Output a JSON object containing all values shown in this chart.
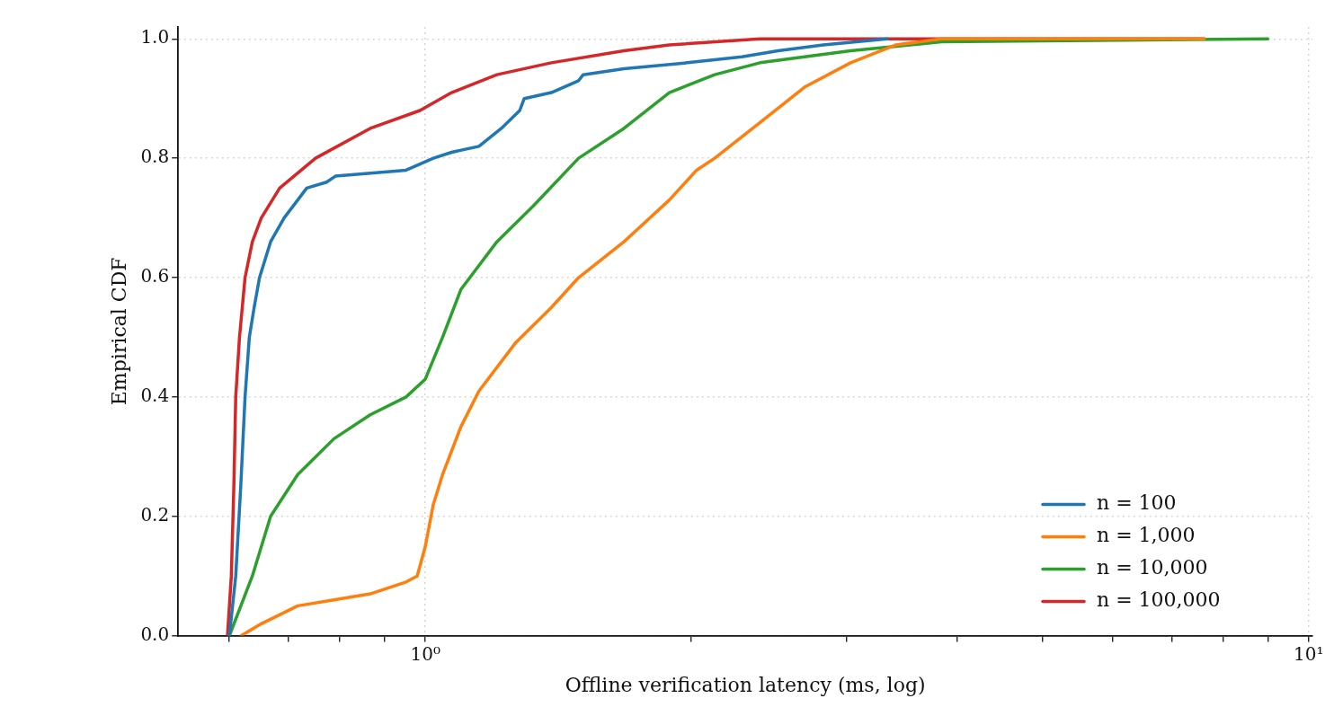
{
  "chart_data": {
    "type": "line",
    "xlabel": "Offline verification latency (ms, log)",
    "ylabel": "Empirical CDF",
    "log": "x",
    "grid": true,
    "legend": "bottom right",
    "marker": "none",
    "line_style": "solid",
    "xlim": [
      0.525,
      10.1
    ],
    "xticks": [
      {
        "value": 0.6,
        "label": null
      },
      {
        "value": 0.7,
        "label": null
      },
      {
        "value": 0.8,
        "label": null
      },
      {
        "value": 0.9,
        "label": null
      },
      {
        "value": 1,
        "label": "10⁰"
      },
      {
        "value": 2,
        "label": null
      },
      {
        "value": 3,
        "label": null
      },
      {
        "value": 4,
        "label": null
      },
      {
        "value": 5,
        "label": null
      },
      {
        "value": 6,
        "label": null
      },
      {
        "value": 7,
        "label": null
      },
      {
        "value": 8,
        "label": null
      },
      {
        "value": 9,
        "label": null
      },
      {
        "value": 10,
        "label": "10¹"
      }
    ],
    "ylim": [
      0,
      1.02
    ],
    "yticks": [
      {
        "value": 0,
        "label": "0.0"
      },
      {
        "value": 0.2,
        "label": "0.2"
      },
      {
        "value": 0.4,
        "label": "0.4"
      },
      {
        "value": 0.6,
        "label": "0.6"
      },
      {
        "value": 0.8,
        "label": "0.8"
      },
      {
        "value": 1,
        "label": "1.0"
      }
    ],
    "series": [
      {
        "name": "n = 100",
        "color": "#1f77b4",
        "x": [
          0.6,
          0.61,
          0.618,
          0.625,
          0.632,
          0.64,
          0.649,
          0.668,
          0.692,
          0.717,
          0.734,
          0.773,
          0.791,
          0.951,
          1.021,
          1.071,
          1.15,
          1.219,
          1.279,
          1.294,
          1.389,
          1.491,
          1.509,
          1.678,
          1.98,
          2.282,
          2.508,
          2.823,
          3.332
        ],
        "values": [
          0,
          0.1,
          0.25,
          0.4,
          0.5,
          0.55,
          0.6,
          0.66,
          0.7,
          0.73,
          0.75,
          0.76,
          0.77,
          0.78,
          0.8,
          0.81,
          0.82,
          0.85,
          0.88,
          0.9,
          0.91,
          0.93,
          0.94,
          0.95,
          0.96,
          0.97,
          0.98,
          0.99,
          1
        ]
      },
      {
        "name": "n = 1,000",
        "color": "#ff7f0e",
        "x": [
          0.619,
          0.652,
          0.717,
          0.788,
          0.866,
          0.951,
          0.979,
          1,
          1.021,
          1.046,
          1.097,
          1.15,
          1.264,
          1.389,
          1.491,
          1.678,
          1.889,
          2.028,
          2.126,
          2.393,
          2.693,
          3.03,
          3.411,
          3.839,
          7.62
        ],
        "values": [
          0,
          0.02,
          0.05,
          0.06,
          0.07,
          0.09,
          0.1,
          0.15,
          0.22,
          0.27,
          0.35,
          0.41,
          0.49,
          0.55,
          0.6,
          0.66,
          0.73,
          0.78,
          0.8,
          0.86,
          0.92,
          0.96,
          0.99,
          1,
          1
        ]
      },
      {
        "name": "n = 10,000",
        "color": "#2ca02c",
        "x": [
          0.6,
          0.637,
          0.668,
          0.717,
          0.788,
          0.866,
          0.951,
          1,
          1.046,
          1.097,
          1.205,
          1.325,
          1.491,
          1.678,
          1.889,
          2.126,
          2.393,
          3.03,
          3.839,
          8.99
        ],
        "values": [
          0,
          0.1,
          0.2,
          0.27,
          0.33,
          0.37,
          0.4,
          0.43,
          0.5,
          0.58,
          0.66,
          0.72,
          0.8,
          0.85,
          0.91,
          0.94,
          0.96,
          0.98,
          0.995,
          1
        ]
      },
      {
        "name": "n = 100,000",
        "color": "#d62728",
        "x": [
          0.597,
          0.603,
          0.607,
          0.61,
          0.616,
          0.625,
          0.637,
          0.652,
          0.684,
          0.751,
          0.866,
          0.986,
          1.071,
          1.205,
          1.389,
          1.678,
          1.889,
          2.393,
          7.62
        ],
        "values": [
          0,
          0.1,
          0.25,
          0.4,
          0.5,
          0.6,
          0.66,
          0.7,
          0.75,
          0.8,
          0.85,
          0.88,
          0.91,
          0.94,
          0.96,
          0.98,
          0.99,
          1,
          1
        ]
      }
    ]
  }
}
